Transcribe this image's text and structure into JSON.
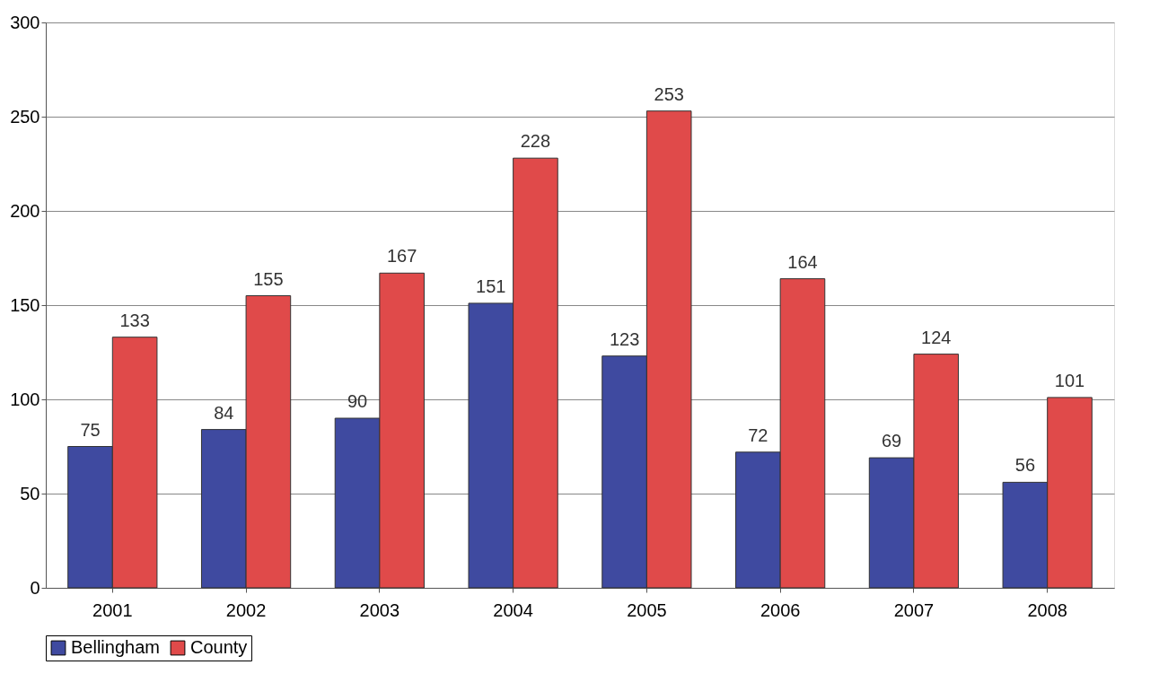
{
  "chart_data": {
    "type": "bar",
    "categories": [
      "2001",
      "2002",
      "2003",
      "2004",
      "2005",
      "2006",
      "2007",
      "2008"
    ],
    "series": [
      {
        "name": "Bellingham",
        "color": "#3f4aa0",
        "values": [
          75,
          84,
          90,
          151,
          123,
          72,
          69,
          56
        ]
      },
      {
        "name": "County",
        "color": "#e04a4a",
        "values": [
          133,
          155,
          167,
          228,
          253,
          164,
          124,
          101
        ]
      }
    ],
    "ylim": [
      0,
      300
    ],
    "yticks": [
      0,
      50,
      100,
      150,
      200,
      250,
      300
    ],
    "grid": "y",
    "legend": "bottom",
    "data_labels": true
  }
}
